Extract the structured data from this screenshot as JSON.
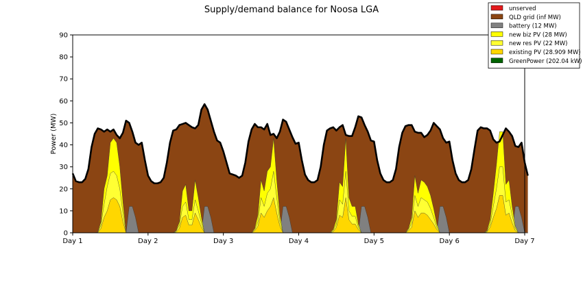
{
  "chart_data": {
    "type": "area",
    "title": "Supply/demand balance for Noosa LGA",
    "xlabel": "",
    "ylabel": "Power (MW)",
    "ylim": [
      0,
      90
    ],
    "yticks": [
      0,
      10,
      20,
      30,
      40,
      50,
      60,
      70,
      80,
      90
    ],
    "xlim": [
      0,
      6
    ],
    "xticks": [
      0,
      1,
      2,
      3,
      4,
      5,
      6
    ],
    "xtick_labels": [
      "Day 1",
      "Day 2",
      "Day 3",
      "Day 4",
      "Day 5",
      "Day 6",
      "Day 7"
    ],
    "legend_position": "top-right",
    "grid": false,
    "x_step_days": 0.0416667,
    "series": [
      {
        "name": "unserved",
        "color": "#e31a1c",
        "kind": "stack",
        "values": [
          0,
          0,
          0,
          0,
          0,
          0,
          0,
          0,
          0,
          0,
          0,
          0,
          0,
          0,
          0,
          0,
          0,
          0,
          0,
          0,
          0,
          0,
          0,
          0,
          0,
          0,
          0,
          0,
          0,
          0,
          0,
          0,
          0,
          0,
          0,
          0,
          0,
          0,
          0,
          0,
          0,
          0,
          0,
          0,
          0,
          0,
          0,
          0,
          0,
          0,
          0,
          0,
          0,
          0,
          0,
          0,
          0,
          0,
          0,
          0,
          0,
          0,
          0,
          0,
          0,
          0,
          0,
          0,
          0,
          0,
          0,
          0,
          0,
          0,
          0,
          0,
          0,
          0,
          0,
          0,
          0,
          0,
          0,
          0,
          0,
          0,
          0,
          0,
          0,
          0,
          0,
          0,
          0,
          0,
          0,
          0,
          0,
          0,
          0,
          0,
          0,
          0,
          0,
          0,
          0,
          0,
          0,
          0,
          0,
          0,
          0,
          0,
          0,
          0,
          0,
          0,
          0,
          0,
          0,
          0,
          0,
          0,
          0,
          0,
          0,
          0,
          0,
          0,
          0,
          0,
          0,
          0,
          0,
          0,
          0,
          0,
          0,
          0,
          0,
          0,
          0,
          0,
          0,
          0,
          0
        ]
      },
      {
        "name": "QLD grid (inf MW)",
        "color": "#8b4513",
        "kind": "total",
        "values": [
          27,
          23.5,
          23,
          23,
          24.5,
          29,
          39,
          45,
          47.5,
          47,
          46,
          47,
          46,
          47,
          44.5,
          43,
          45.5,
          51,
          50,
          46,
          41,
          40,
          41,
          33,
          26,
          23.5,
          22.5,
          22.5,
          23,
          25,
          32,
          41,
          46.5,
          47,
          49,
          49.5,
          50,
          49,
          48,
          47.5,
          49,
          56,
          58.5,
          56,
          51,
          46,
          42,
          41,
          37,
          32,
          27,
          26.5,
          26,
          25,
          26,
          32,
          41.5,
          47,
          49.5,
          48,
          48,
          47,
          49.5,
          44.5,
          45,
          43,
          46,
          51.5,
          50.5,
          47,
          43.5,
          40.5,
          41,
          33,
          26.5,
          24,
          23,
          23,
          24,
          30,
          40,
          46.5,
          47.5,
          48,
          46.5,
          48,
          49,
          44.5,
          44,
          44,
          48,
          53,
          52.5,
          49,
          46,
          42,
          41.5,
          33,
          27,
          24,
          23,
          23,
          24,
          29,
          39,
          45.5,
          48.5,
          49,
          49,
          46,
          45.5,
          45.5,
          43.5,
          44.5,
          46.5,
          50,
          48.5,
          47,
          43,
          41,
          41.5,
          33,
          27,
          24,
          23,
          23,
          24,
          29,
          38,
          46.5,
          48,
          47.5,
          47.5,
          46.5,
          42.5,
          41,
          41.5,
          44.5,
          47.5,
          46,
          44,
          39.5,
          39,
          41,
          32,
          26
        ]
      },
      {
        "name": "battery (12 MW)",
        "color": "#808080",
        "kind": "stack",
        "values": [
          0,
          0,
          0,
          0,
          0,
          0,
          0,
          0,
          0,
          0,
          0,
          0,
          0,
          0,
          0,
          0,
          0,
          0,
          12,
          12,
          7,
          0,
          0,
          0,
          0,
          0,
          0,
          0,
          0,
          0,
          0,
          0,
          0,
          0,
          0,
          0,
          0,
          0,
          0,
          0,
          0,
          0,
          12,
          12,
          7,
          0,
          0,
          0,
          0,
          0,
          0,
          0,
          0,
          0,
          0,
          0,
          0,
          0,
          0,
          0,
          0,
          0,
          0,
          0,
          0,
          0,
          0,
          12,
          12,
          7,
          0,
          0,
          0,
          0,
          0,
          0,
          0,
          0,
          0,
          0,
          0,
          0,
          0,
          0,
          0,
          0,
          0,
          0,
          0,
          0,
          0,
          0,
          12,
          12,
          7,
          0,
          0,
          0,
          0,
          0,
          0,
          0,
          0,
          0,
          0,
          0,
          0,
          0,
          0,
          0,
          0,
          0,
          0,
          0,
          0,
          0,
          0,
          12,
          12,
          7,
          0,
          0,
          0,
          0,
          0,
          0,
          0,
          0,
          0,
          0,
          0,
          0,
          0,
          0,
          0,
          0,
          0,
          0,
          0,
          0,
          0,
          12,
          12,
          7,
          0,
          0
        ]
      },
      {
        "name": "new biz PV (28 MW)",
        "color": "#ffff00",
        "kind": "cumulative",
        "values": [
          0,
          0,
          0,
          0,
          0,
          0,
          0,
          0,
          0.3,
          5,
          20,
          26,
          41,
          43,
          41,
          30,
          14,
          0,
          0,
          0,
          0,
          0,
          0,
          0,
          0,
          0,
          0,
          0,
          0,
          0,
          0,
          0,
          0,
          1,
          5,
          19,
          22,
          10,
          10,
          24,
          16,
          7,
          0,
          0,
          0,
          0,
          0,
          0,
          0,
          0,
          0,
          0,
          0,
          0,
          0,
          0,
          0,
          0,
          2,
          8,
          24,
          19,
          28,
          30,
          43,
          24,
          8,
          0,
          0,
          0,
          0,
          0,
          0,
          0,
          0,
          0,
          0,
          0,
          0,
          0,
          0,
          0,
          0,
          1.5,
          6,
          23,
          21,
          43,
          16,
          12,
          12,
          4,
          0,
          0,
          0,
          0,
          0,
          0,
          0,
          0,
          0,
          0,
          0,
          0,
          0,
          0,
          0,
          2,
          7,
          26,
          18,
          24,
          23,
          21,
          17,
          11,
          4,
          0,
          0,
          0,
          0,
          0,
          0,
          0,
          0,
          0,
          0,
          0,
          0,
          0,
          0,
          0,
          1,
          6,
          18,
          31,
          46,
          46,
          22,
          24,
          12,
          3,
          0,
          0,
          0,
          0,
          0,
          0,
          0
        ]
      },
      {
        "name": "new res PV (22 MW)",
        "color": "#ffff33",
        "kind": "cumulative",
        "values": [
          0,
          0,
          0,
          0,
          0,
          0,
          0,
          0,
          0.2,
          3.5,
          13,
          21,
          27,
          28,
          26,
          20,
          9,
          0,
          0,
          0,
          0,
          0,
          0,
          0,
          0,
          0,
          0,
          0,
          0,
          0,
          0,
          0,
          0,
          0.8,
          3.5,
          12,
          14,
          6,
          6,
          15,
          10,
          4.5,
          0,
          0,
          0,
          0,
          0,
          0,
          0,
          0,
          0,
          0,
          0,
          0,
          0,
          0,
          0,
          0,
          1.5,
          5,
          16,
          12,
          18,
          20,
          28,
          16,
          5,
          0,
          0,
          0,
          0,
          0,
          0,
          0,
          0,
          0,
          0,
          0,
          0,
          0,
          0,
          0,
          0,
          1,
          4,
          15,
          13,
          28,
          10,
          7.5,
          7.5,
          2.5,
          0,
          0,
          0,
          0,
          0,
          0,
          0,
          0,
          0,
          0,
          0,
          0,
          0,
          0,
          0,
          1.5,
          4.5,
          17,
          12,
          16,
          15,
          14,
          11,
          7,
          2.5,
          0,
          0,
          0,
          0,
          0,
          0,
          0,
          0,
          0,
          0,
          0,
          0,
          0,
          0,
          0,
          0.7,
          4,
          12,
          20,
          30,
          30,
          14,
          15,
          8,
          2,
          0,
          0,
          0,
          0,
          0,
          0,
          0
        ]
      },
      {
        "name": "existing PV (28.909 MW)",
        "color": "#ffd700",
        "kind": "cumulative",
        "values": [
          0,
          0,
          0,
          0,
          0,
          0,
          0,
          0,
          0.1,
          2,
          7,
          10,
          15,
          16,
          15,
          12,
          5,
          0,
          0,
          0,
          0,
          0,
          0,
          0,
          0,
          0,
          0,
          0,
          0,
          0,
          0,
          0,
          0,
          0.4,
          2,
          7,
          8,
          3.5,
          3.5,
          9,
          6,
          2.5,
          0,
          0,
          0,
          0,
          0,
          0,
          0,
          0,
          0,
          0,
          0,
          0,
          0,
          0,
          0,
          0,
          1,
          3,
          9,
          7,
          10,
          12,
          16,
          9,
          3,
          0,
          0,
          0,
          0,
          0,
          0,
          0,
          0,
          0,
          0,
          0,
          0,
          0,
          0,
          0,
          0,
          0.5,
          2.5,
          8,
          7,
          16,
          6,
          4,
          4,
          1.5,
          0,
          0,
          0,
          0,
          0,
          0,
          0,
          0,
          0,
          0,
          0,
          0,
          0,
          0,
          0,
          1,
          2.5,
          10,
          7,
          9,
          9,
          8,
          6,
          4,
          1.5,
          0,
          0,
          0,
          0,
          0,
          0,
          0,
          0,
          0,
          0,
          0,
          0,
          0,
          0,
          0,
          0.4,
          2.5,
          7,
          11,
          17,
          17,
          8,
          9,
          4.5,
          1,
          0,
          0,
          0,
          0,
          0,
          0,
          0
        ]
      },
      {
        "name": "GreenPower (202.04 kW)",
        "color": "#006400",
        "kind": "cumulative",
        "values": [
          0,
          0,
          0,
          0,
          0,
          0,
          0,
          0,
          0,
          0,
          0,
          0,
          0,
          0,
          0,
          0,
          0,
          0,
          0,
          0,
          0,
          0,
          0,
          0,
          0,
          0,
          0,
          0,
          0,
          0,
          0,
          0,
          0,
          0,
          0,
          0,
          0,
          0,
          0,
          0,
          0,
          0,
          0,
          0,
          0,
          0,
          0,
          0,
          0,
          0,
          0,
          0,
          0,
          0,
          0,
          0,
          0,
          0,
          0,
          0,
          0,
          0,
          0,
          0,
          0,
          0,
          0,
          0,
          0,
          0,
          0,
          0,
          0,
          0,
          0,
          0,
          0,
          0,
          0,
          0,
          0,
          0,
          0,
          0,
          0,
          0,
          0,
          0,
          0,
          0,
          0,
          0,
          0,
          0,
          0,
          0,
          0,
          0,
          0,
          0,
          0,
          0,
          0,
          0,
          0,
          0,
          0,
          0,
          0,
          0,
          0,
          0,
          0,
          0,
          0,
          0,
          0,
          0,
          0,
          0,
          0,
          0,
          0,
          0,
          0,
          0,
          0,
          0,
          0,
          0,
          0,
          0,
          0,
          0,
          0,
          0,
          0,
          0,
          0,
          0,
          0,
          0,
          0,
          0,
          0
        ]
      }
    ]
  }
}
